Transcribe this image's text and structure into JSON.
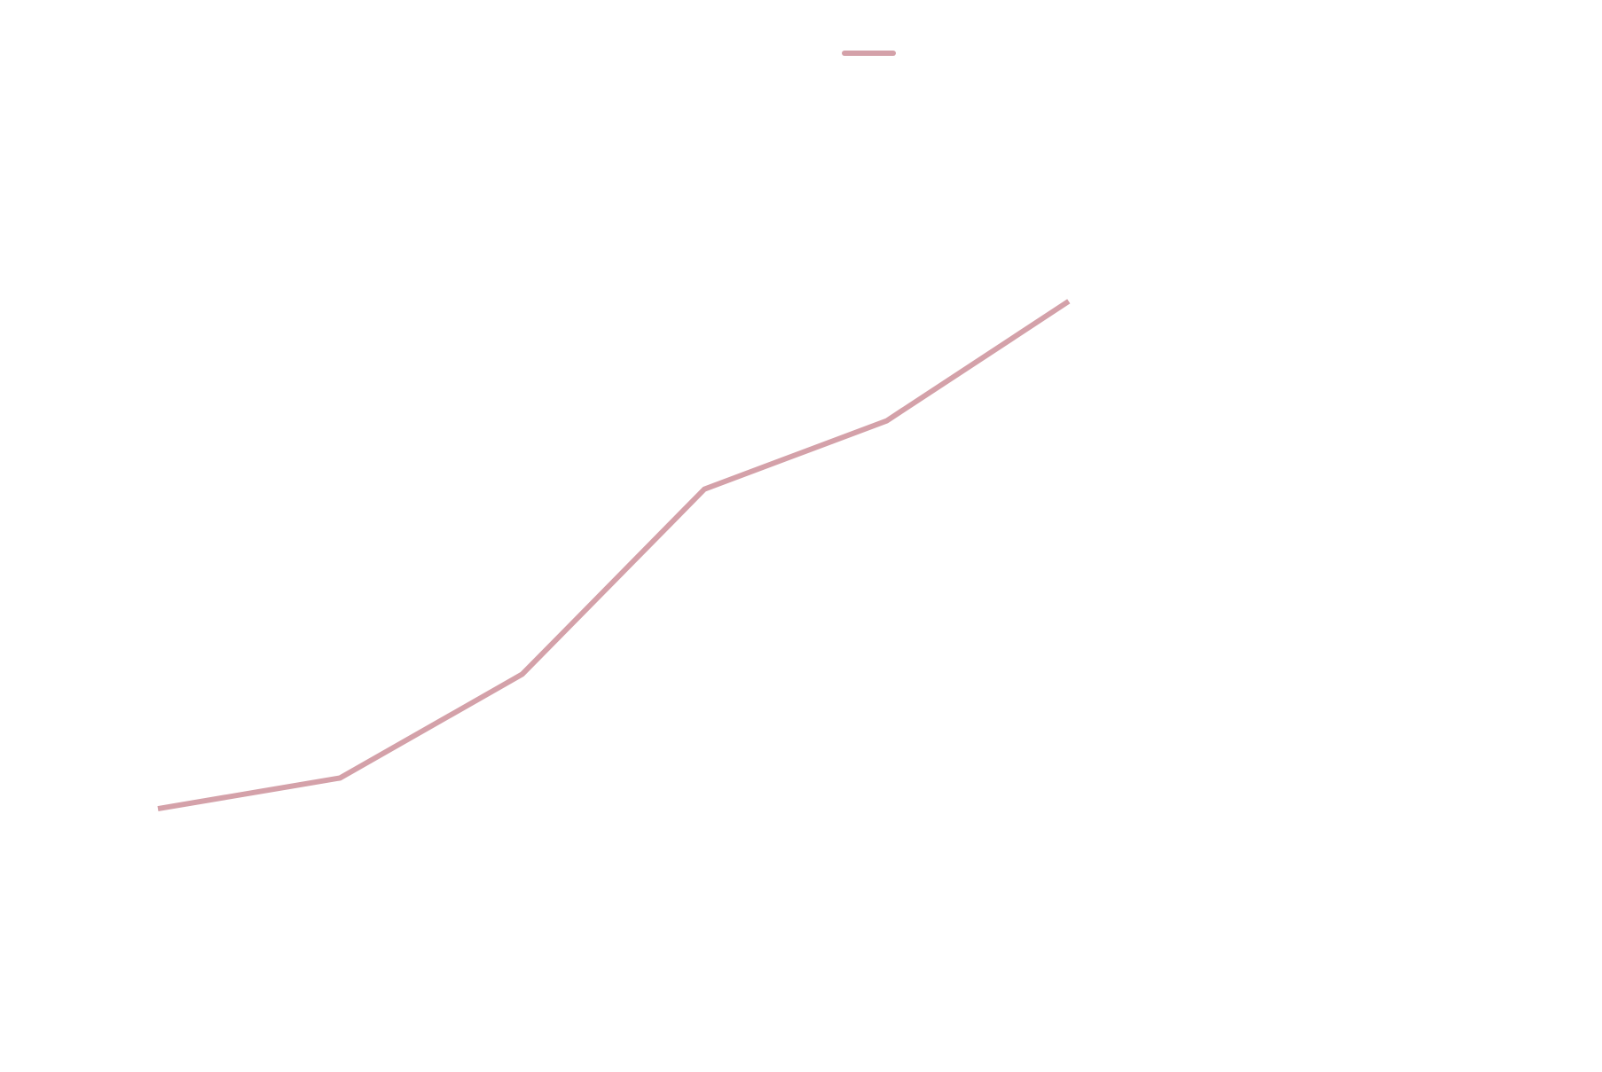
{
  "chart_data": {
    "type": "line",
    "title": "",
    "xlabel": "",
    "ylabel": "",
    "x": [
      0,
      1,
      2,
      3,
      4,
      5
    ],
    "xlim": [
      0,
      6.9
    ],
    "ylim": [
      0,
      100
    ],
    "grid": false,
    "legend": {
      "placement": "top-center",
      "entries": [
        ""
      ]
    },
    "series": [
      {
        "color": "#d4a1a9",
        "values": [
          20.1,
          23.4,
          34.5,
          54.3,
          61.6,
          74.4
        ]
      }
    ]
  }
}
